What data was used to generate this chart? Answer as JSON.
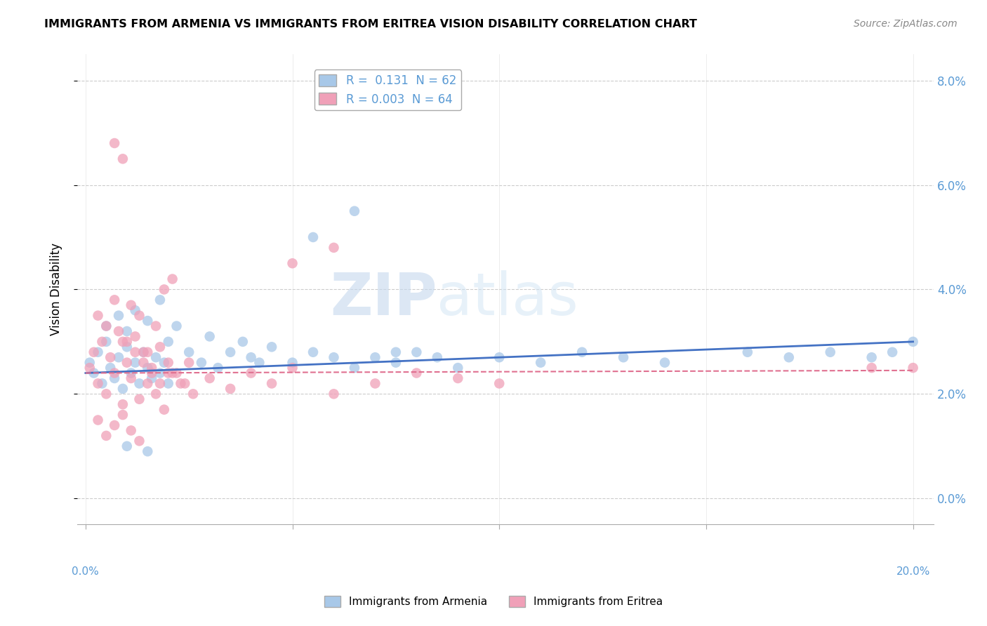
{
  "title": "IMMIGRANTS FROM ARMENIA VS IMMIGRANTS FROM ERITREA VISION DISABILITY CORRELATION CHART",
  "source": "Source: ZipAtlas.com",
  "ylabel": "Vision Disability",
  "legend_label1": "Immigrants from Armenia",
  "legend_label2": "Immigrants from Eritrea",
  "R1": 0.131,
  "N1": 62,
  "R2": 0.003,
  "N2": 64,
  "color1": "#A8C8E8",
  "color2": "#F0A0B8",
  "line_color1": "#4472C4",
  "line_color2": "#E07090",
  "xlim": [
    -0.002,
    0.205
  ],
  "ylim": [
    -0.005,
    0.085
  ],
  "xtick_positions": [
    0.0,
    0.05,
    0.1,
    0.15,
    0.2
  ],
  "ytick_positions": [
    0.0,
    0.02,
    0.04,
    0.06,
    0.08
  ],
  "watermark": "ZIPatlas",
  "axis_color": "#5B9BD5",
  "tick_label_color": "#5B9BD5",
  "armenia_x": [
    0.001,
    0.002,
    0.003,
    0.004,
    0.005,
    0.006,
    0.007,
    0.008,
    0.009,
    0.01,
    0.011,
    0.012,
    0.013,
    0.014,
    0.015,
    0.016,
    0.017,
    0.018,
    0.019,
    0.02,
    0.005,
    0.008,
    0.01,
    0.012,
    0.015,
    0.018,
    0.02,
    0.022,
    0.025,
    0.028,
    0.03,
    0.032,
    0.035,
    0.038,
    0.04,
    0.042,
    0.045,
    0.05,
    0.055,
    0.06,
    0.065,
    0.07,
    0.075,
    0.08,
    0.09,
    0.1,
    0.11,
    0.12,
    0.13,
    0.14,
    0.16,
    0.17,
    0.18,
    0.19,
    0.195,
    0.2,
    0.055,
    0.065,
    0.075,
    0.085,
    0.01,
    0.015
  ],
  "armenia_y": [
    0.026,
    0.024,
    0.028,
    0.022,
    0.03,
    0.025,
    0.023,
    0.027,
    0.021,
    0.029,
    0.024,
    0.026,
    0.022,
    0.028,
    0.025,
    0.023,
    0.027,
    0.024,
    0.026,
    0.022,
    0.033,
    0.035,
    0.032,
    0.036,
    0.034,
    0.038,
    0.03,
    0.033,
    0.028,
    0.026,
    0.031,
    0.025,
    0.028,
    0.03,
    0.027,
    0.026,
    0.029,
    0.026,
    0.028,
    0.027,
    0.025,
    0.027,
    0.026,
    0.028,
    0.025,
    0.027,
    0.026,
    0.028,
    0.027,
    0.026,
    0.028,
    0.027,
    0.028,
    0.027,
    0.028,
    0.03,
    0.05,
    0.055,
    0.028,
    0.027,
    0.01,
    0.009
  ],
  "eritrea_x": [
    0.001,
    0.002,
    0.003,
    0.004,
    0.005,
    0.006,
    0.007,
    0.008,
    0.009,
    0.01,
    0.011,
    0.012,
    0.013,
    0.014,
    0.015,
    0.016,
    0.017,
    0.018,
    0.019,
    0.02,
    0.003,
    0.005,
    0.007,
    0.009,
    0.011,
    0.013,
    0.015,
    0.017,
    0.019,
    0.021,
    0.003,
    0.005,
    0.007,
    0.009,
    0.011,
    0.013,
    0.021,
    0.023,
    0.025,
    0.03,
    0.035,
    0.04,
    0.045,
    0.05,
    0.06,
    0.07,
    0.08,
    0.09,
    0.1,
    0.01,
    0.012,
    0.014,
    0.016,
    0.018,
    0.02,
    0.022,
    0.024,
    0.026,
    0.19,
    0.2,
    0.05,
    0.06,
    0.007,
    0.009
  ],
  "eritrea_y": [
    0.025,
    0.028,
    0.022,
    0.03,
    0.02,
    0.027,
    0.024,
    0.032,
    0.018,
    0.026,
    0.023,
    0.031,
    0.019,
    0.028,
    0.022,
    0.025,
    0.02,
    0.029,
    0.017,
    0.024,
    0.035,
    0.033,
    0.038,
    0.03,
    0.037,
    0.035,
    0.028,
    0.033,
    0.04,
    0.042,
    0.015,
    0.012,
    0.014,
    0.016,
    0.013,
    0.011,
    0.024,
    0.022,
    0.026,
    0.023,
    0.021,
    0.024,
    0.022,
    0.025,
    0.02,
    0.022,
    0.024,
    0.023,
    0.022,
    0.03,
    0.028,
    0.026,
    0.024,
    0.022,
    0.026,
    0.024,
    0.022,
    0.02,
    0.025,
    0.025,
    0.045,
    0.048,
    0.068,
    0.065
  ]
}
